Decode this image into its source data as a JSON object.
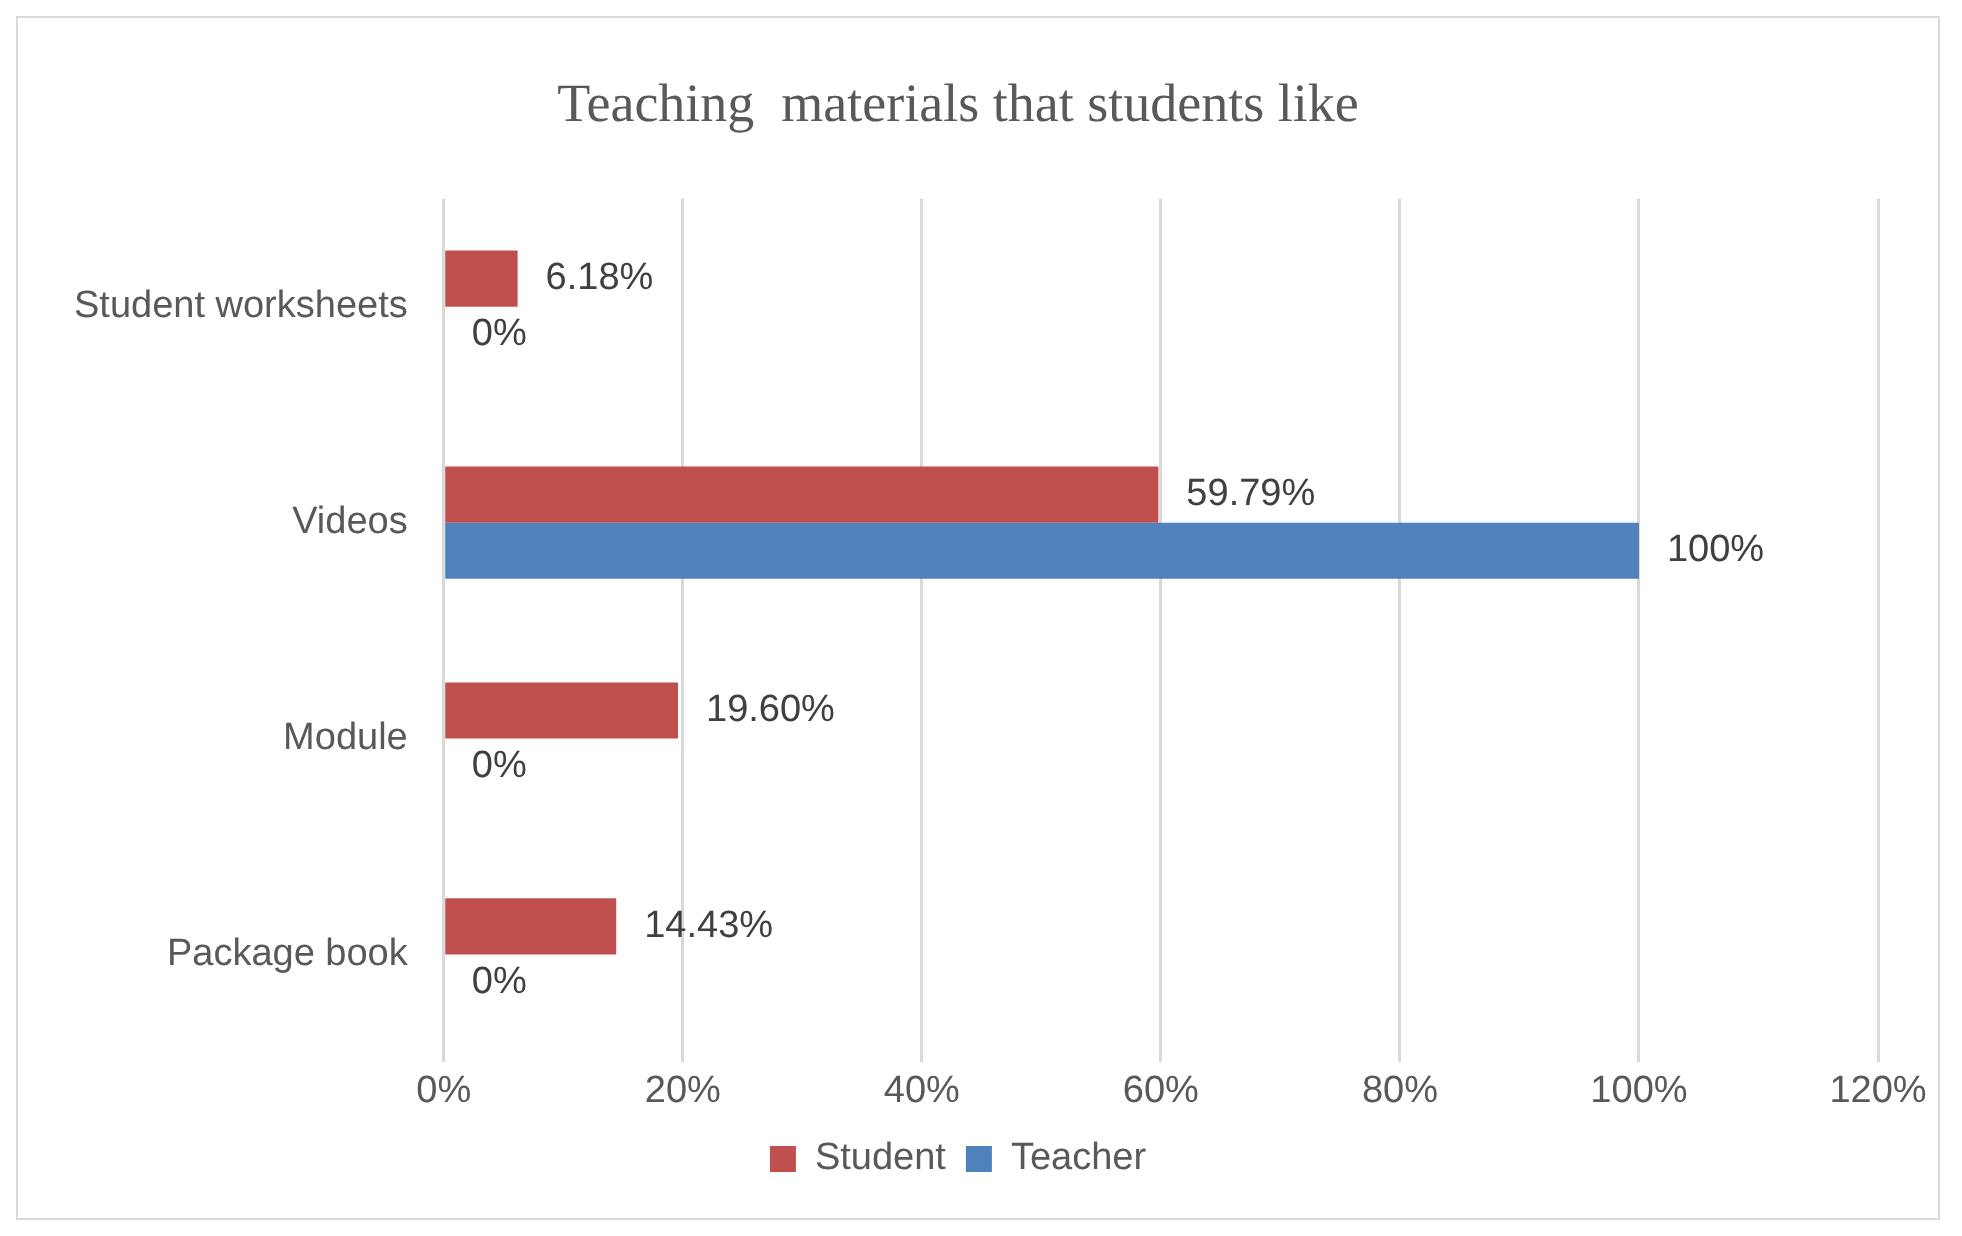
{
  "chart_data": {
    "type": "bar",
    "orientation": "horizontal",
    "title": "Teaching  materials that students like",
    "categories": [
      "Student worksheets",
      "Videos",
      "Module",
      "Package book"
    ],
    "series": [
      {
        "name": "Student",
        "color": "#c0504d",
        "values": [
          6.18,
          59.79,
          19.6,
          14.43
        ],
        "value_labels": [
          "6.18%",
          "59.79%",
          "19.60%",
          "14.43%"
        ]
      },
      {
        "name": "Teacher",
        "color": "#4f81bd",
        "values": [
          0,
          100,
          0,
          0
        ],
        "value_labels": [
          "0%",
          "100%",
          "0%",
          "0%"
        ]
      }
    ],
    "xlim": [
      0,
      120
    ],
    "xticks": [
      {
        "value": 0,
        "label": "0%"
      },
      {
        "value": 20,
        "label": "20%"
      },
      {
        "value": 40,
        "label": "40%"
      },
      {
        "value": 60,
        "label": "60%"
      },
      {
        "value": 80,
        "label": "80%"
      },
      {
        "value": 100,
        "label": "100%"
      },
      {
        "value": 120,
        "label": "120%"
      }
    ],
    "grid": "x",
    "legend": "bottom"
  }
}
